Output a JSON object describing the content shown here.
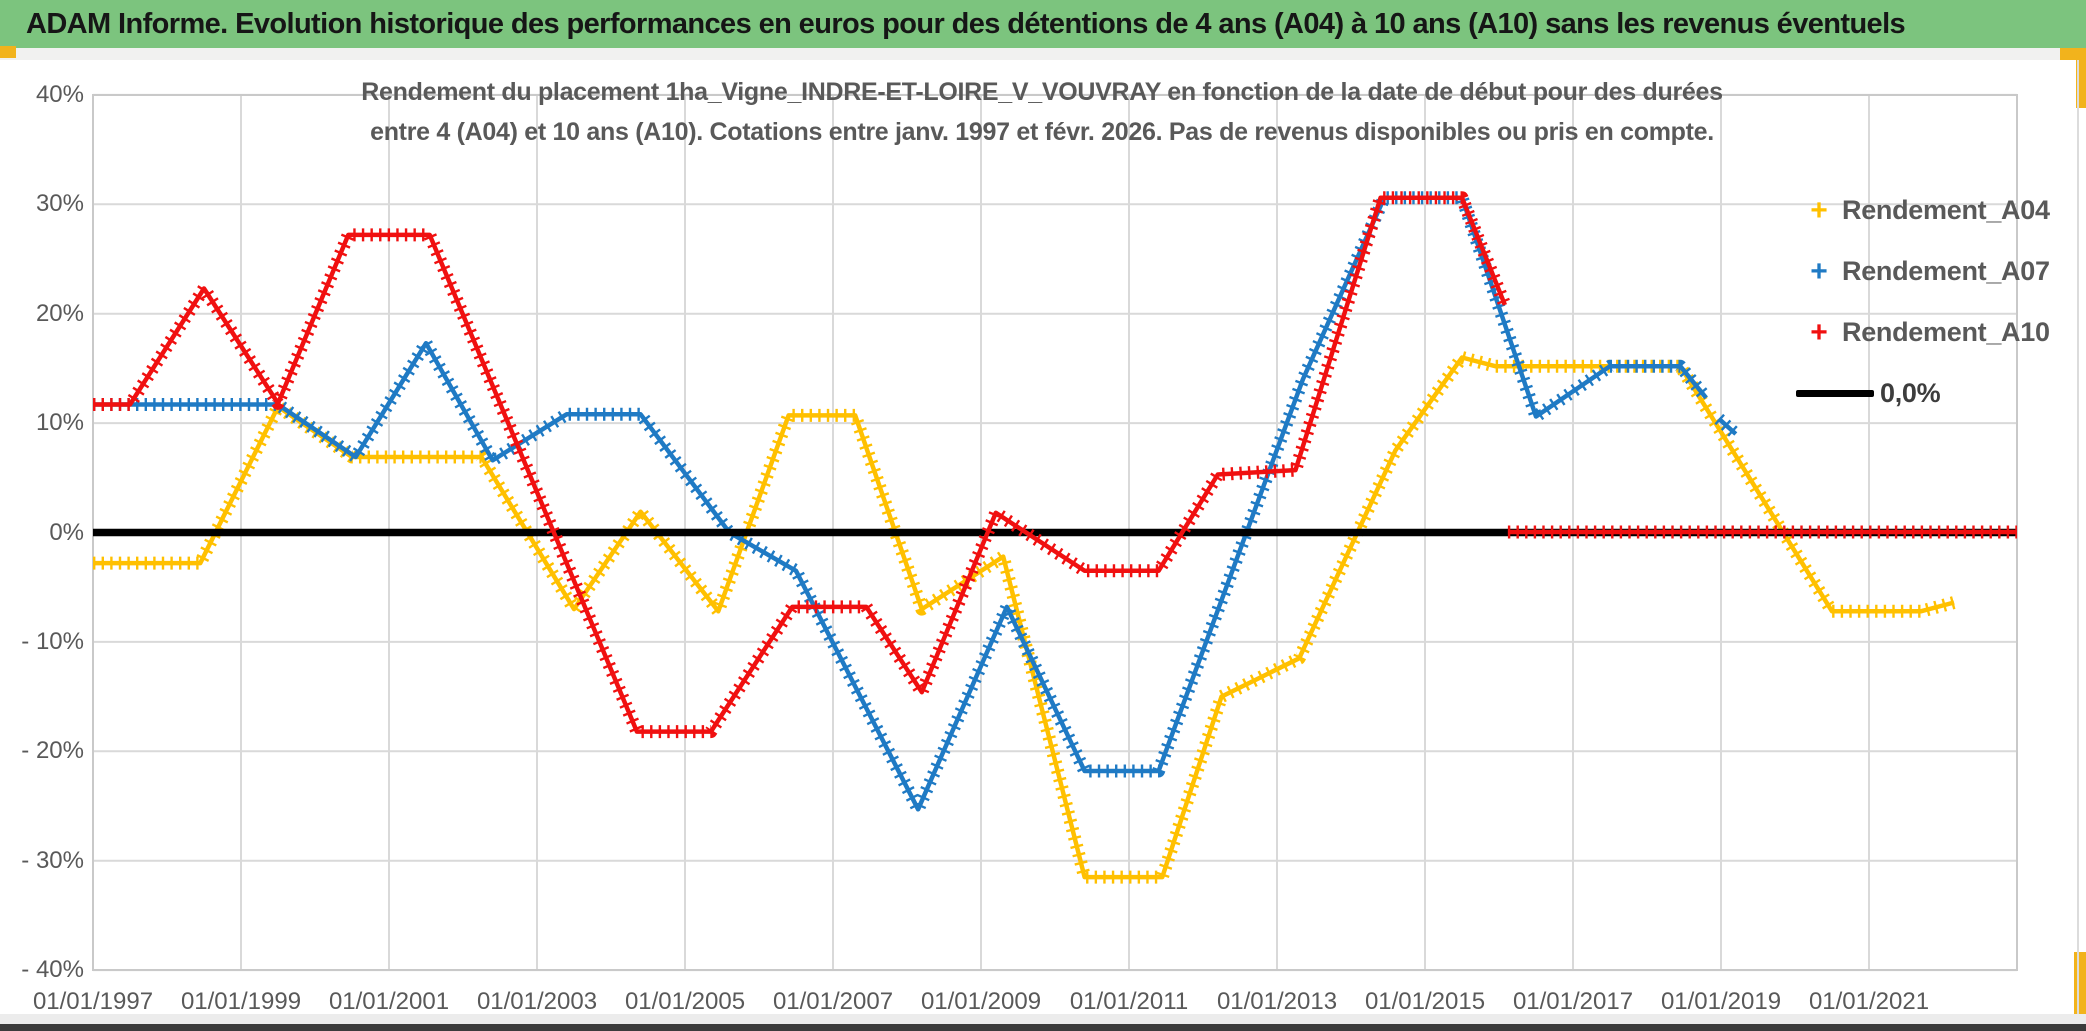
{
  "window": {
    "title": "ADAM Informe. Evolution historique des performances en euros pour des détentions de 4 ans (A04) à 10 ans (A10) sans les revenus éventuels"
  },
  "colors": {
    "header_bg": "#7CC47E",
    "accent_gold": "#F2B31C",
    "a04": "#FFC000",
    "a07": "#1F7AC4",
    "a10": "#F01010",
    "zero": "#000000",
    "grid": "#D9D9D9",
    "plot_border": "#C9C9C9",
    "axis_text": "#595959",
    "bottom_bar": "#3B3B3B"
  },
  "chart_data": {
    "type": "line",
    "title": "Rendement du placement 1ha_Vigne_INDRE-ET-LOIRE_V_VOUVRAY en fonction de la date de début pour des durées",
    "subtitle": "entre 4 (A04) et 10 ans (A10). Cotations entre janv. 1997 et févr. 2026. Pas de revenus disponibles ou pris en compte.",
    "xlabel": "",
    "ylabel": "",
    "grid": true,
    "legend_position": "right-inside",
    "ylim": [
      -40,
      40
    ],
    "xlim": [
      1997,
      2023.05
    ],
    "y_ticks": [
      {
        "value": 40,
        "label": "40%"
      },
      {
        "value": 30,
        "label": "30%"
      },
      {
        "value": 20,
        "label": "20%"
      },
      {
        "value": 10,
        "label": "10%"
      },
      {
        "value": 0,
        "label": "0%"
      },
      {
        "value": -10,
        "label": "- 10%"
      },
      {
        "value": -20,
        "label": "- 20%"
      },
      {
        "value": -30,
        "label": "- 30%"
      },
      {
        "value": -40,
        "label": "- 40%"
      }
    ],
    "x_ticks": [
      {
        "year": 1997,
        "label": "01/01/1997"
      },
      {
        "year": 1999,
        "label": "01/01/1999"
      },
      {
        "year": 2001,
        "label": "01/01/2001"
      },
      {
        "year": 2003,
        "label": "01/01/2003"
      },
      {
        "year": 2005,
        "label": "01/01/2005"
      },
      {
        "year": 2007,
        "label": "01/01/2007"
      },
      {
        "year": 2009,
        "label": "01/01/2009"
      },
      {
        "year": 2011,
        "label": "01/01/2011"
      },
      {
        "year": 2013,
        "label": "01/01/2013"
      },
      {
        "year": 2015,
        "label": "01/01/2015"
      },
      {
        "year": 2017,
        "label": "01/01/2017"
      },
      {
        "year": 2019,
        "label": "01/01/2019"
      },
      {
        "year": 2021,
        "label": "01/01/2021"
      }
    ],
    "series": [
      {
        "name": "Rendement_A04",
        "color_key": "a04",
        "marker": "plus",
        "width": 4.5,
        "segments": [
          [
            [
              1997.0,
              -2.8
            ],
            [
              1998.45,
              -2.8
            ],
            [
              1999.5,
              11.5
            ],
            [
              2000.5,
              6.9
            ],
            [
              2002.25,
              6.9
            ],
            [
              2003.5,
              -7.0
            ],
            [
              2004.4,
              1.9
            ],
            [
              2005.45,
              -7.2
            ],
            [
              2006.4,
              10.7
            ],
            [
              2007.3,
              10.7
            ],
            [
              2008.2,
              -7.0
            ],
            [
              2009.3,
              -2.2
            ],
            [
              2010.4,
              -31.5
            ],
            [
              2011.45,
              -31.5
            ],
            [
              2012.25,
              -15.0
            ],
            [
              2013.3,
              -11.5
            ],
            [
              2014.6,
              7.5
            ],
            [
              2015.5,
              16.0
            ],
            [
              2015.95,
              15.2
            ],
            [
              2018.45,
              15.2
            ],
            [
              2020.5,
              -7.2
            ],
            [
              2021.7,
              -7.2
            ],
            [
              2022.15,
              -6.4
            ]
          ]
        ]
      },
      {
        "name": "Rendement_A07",
        "color_key": "a07",
        "marker": "plus",
        "width": 4.5,
        "segments": [
          [
            [
              1997.0,
              11.7
            ],
            [
              1999.5,
              11.7
            ],
            [
              2000.55,
              6.9
            ],
            [
              2001.5,
              17.3
            ],
            [
              2002.4,
              6.6
            ],
            [
              2003.4,
              10.8
            ],
            [
              2004.4,
              10.8
            ],
            [
              2005.6,
              0.0
            ],
            [
              2006.5,
              -3.5
            ],
            [
              2008.15,
              -25.3
            ],
            [
              2009.35,
              -6.8
            ],
            [
              2010.4,
              -21.8
            ],
            [
              2011.4,
              -21.8
            ],
            [
              2013.35,
              14.0
            ],
            [
              2014.45,
              30.6
            ],
            [
              2015.5,
              30.6
            ],
            [
              2016.5,
              10.6
            ],
            [
              2017.5,
              15.2
            ],
            [
              2018.45,
              15.2
            ],
            [
              2018.8,
              12.3
            ]
          ],
          [
            [
              2018.97,
              10.4
            ],
            [
              2019.2,
              9.0
            ]
          ]
        ]
      },
      {
        "name": "Rendement_A10",
        "color_key": "a10",
        "marker": "plus",
        "width": 4.5,
        "segments": [
          [
            [
              1997.0,
              11.7
            ],
            [
              1997.5,
              11.7
            ],
            [
              1998.5,
              22.3
            ],
            [
              1999.5,
              11.8
            ],
            [
              2000.45,
              27.2
            ],
            [
              2001.55,
              27.2
            ],
            [
              2004.35,
              -18.2
            ],
            [
              2005.35,
              -18.2
            ],
            [
              2006.45,
              -6.8
            ],
            [
              2007.45,
              -6.8
            ],
            [
              2008.2,
              -14.6
            ],
            [
              2009.2,
              1.8
            ],
            [
              2010.4,
              -3.5
            ],
            [
              2011.4,
              -3.5
            ],
            [
              2012.2,
              5.3
            ],
            [
              2013.25,
              5.7
            ],
            [
              2014.4,
              30.6
            ],
            [
              2015.5,
              30.6
            ],
            [
              2016.08,
              20.8
            ]
          ],
          [
            [
              2016.12,
              0.05
            ],
            [
              2023.0,
              0.05
            ]
          ]
        ]
      },
      {
        "name": "0,0%",
        "color_key": "zero",
        "marker": "none",
        "width": 7.5,
        "segments": [
          [
            [
              1997.0,
              0.0
            ],
            [
              2023.0,
              0.0
            ]
          ]
        ]
      }
    ],
    "legend": [
      {
        "label": "Rendement_A04",
        "color_key": "a04",
        "swatch": "plus"
      },
      {
        "label": "Rendement_A07",
        "color_key": "a07",
        "swatch": "plus"
      },
      {
        "label": "Rendement_A10",
        "color_key": "a10",
        "swatch": "plus"
      },
      {
        "label": "0,0%",
        "color_key": "zero",
        "swatch": "line"
      }
    ]
  }
}
